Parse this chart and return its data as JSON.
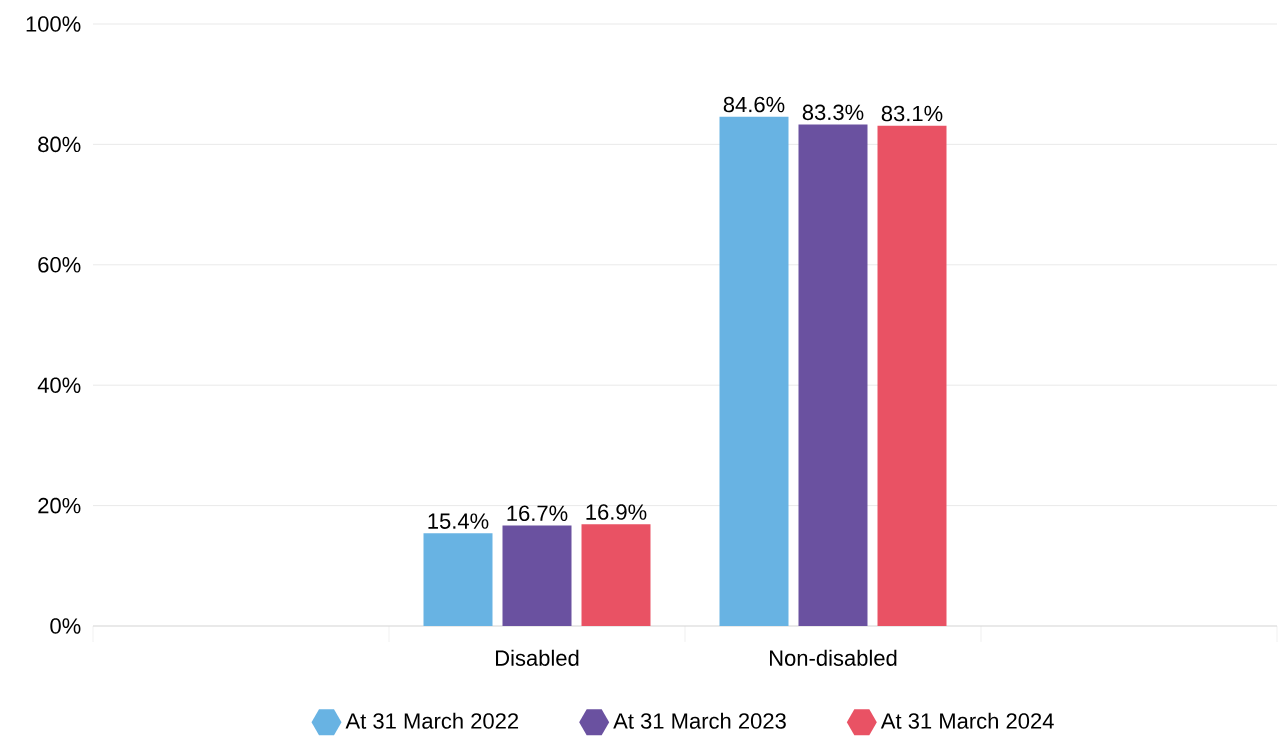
{
  "chart_data": {
    "type": "bar",
    "categories": [
      null,
      "Disabled",
      "Non-disabled",
      null
    ],
    "series": [
      {
        "name": "At 31 March 2022",
        "color": "#68b3e3",
        "values": [
          null,
          15.4,
          84.6,
          null
        ],
        "value_labels": [
          null,
          "15.4%",
          "84.6%",
          null
        ]
      },
      {
        "name": "At 31 March 2023",
        "color": "#6a51a0",
        "values": [
          null,
          16.7,
          83.3,
          null
        ],
        "value_labels": [
          null,
          "16.7%",
          "83.3%",
          null
        ]
      },
      {
        "name": "At 31 March 2024",
        "color": "#e95264",
        "values": [
          null,
          16.9,
          83.1,
          null
        ],
        "value_labels": [
          null,
          "16.9%",
          "83.1%",
          null
        ]
      }
    ],
    "ylim": [
      0,
      100
    ],
    "yticks": [
      {
        "value": 0,
        "label": "0%"
      },
      {
        "value": 20,
        "label": "20%"
      },
      {
        "value": 40,
        "label": "40%"
      },
      {
        "value": 60,
        "label": "60%"
      },
      {
        "value": 80,
        "label": "80%"
      },
      {
        "value": 100,
        "label": "100%"
      }
    ],
    "grid": "y",
    "legend": "bottom"
  }
}
